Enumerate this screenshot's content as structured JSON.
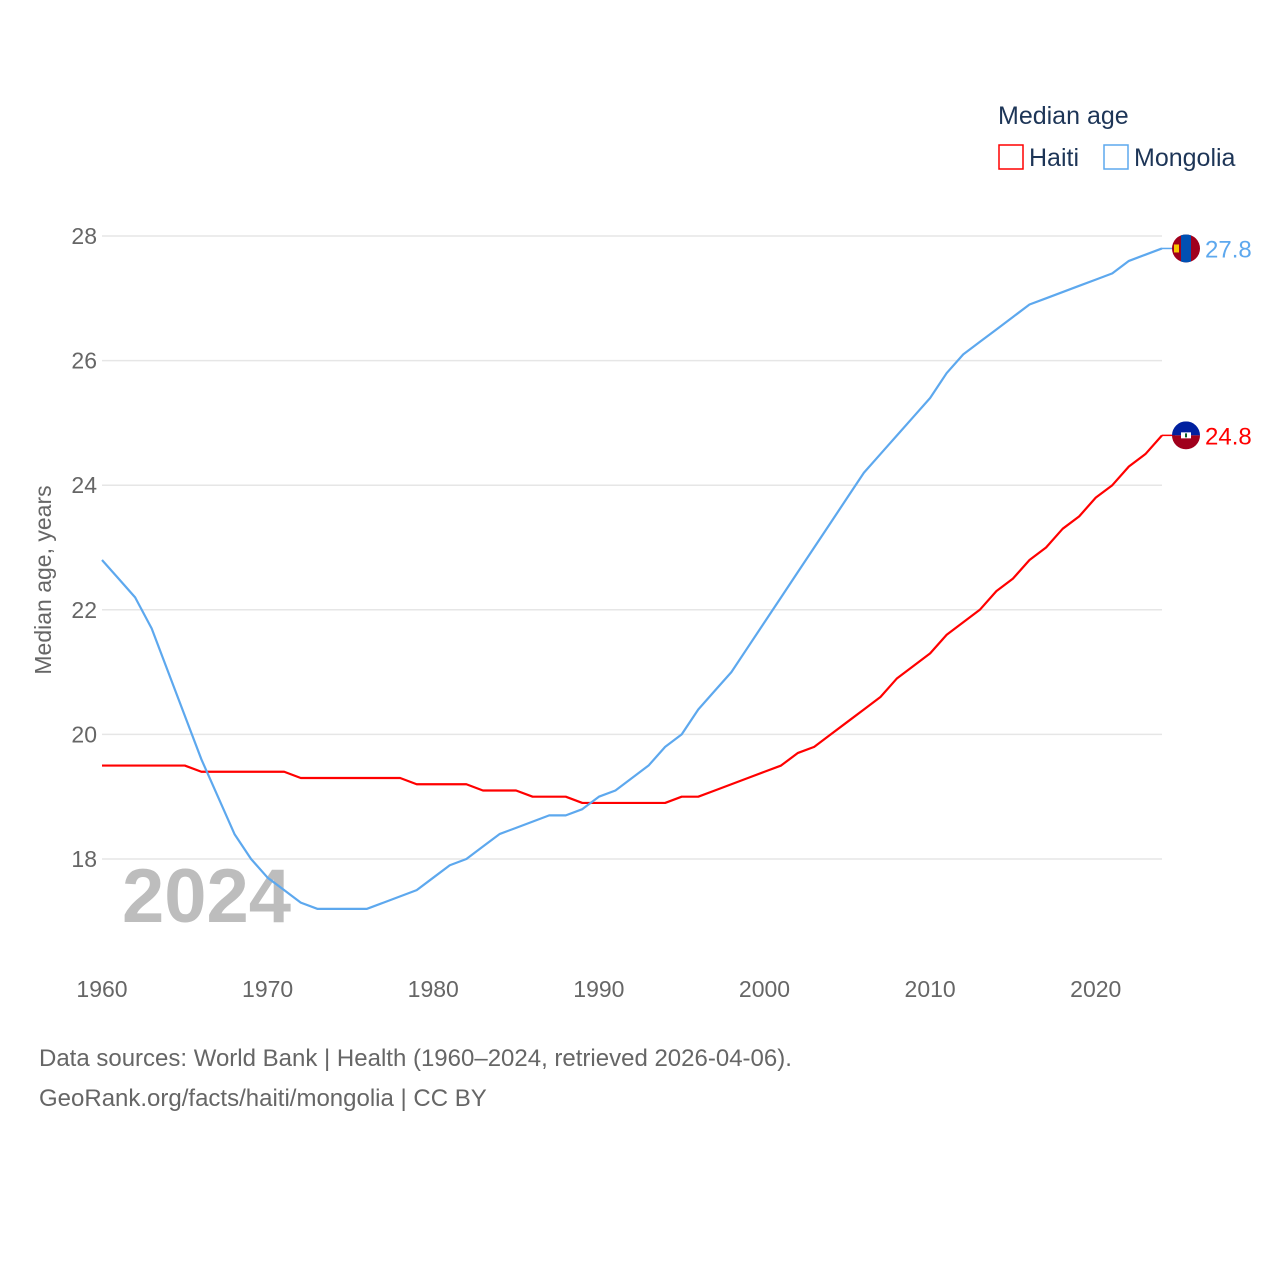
{
  "chart_data": {
    "type": "line",
    "title": "",
    "legend_title": "Median age",
    "legend_placement": "top-right",
    "xlabel": "",
    "ylabel": "Median age, years",
    "xlim": [
      1960,
      2024
    ],
    "ylim": [
      17,
      28
    ],
    "x_ticks": [
      1960,
      1970,
      1980,
      1990,
      2000,
      2010,
      2020
    ],
    "y_ticks": [
      18,
      20,
      22,
      24,
      26,
      28
    ],
    "grid": true,
    "year_watermark": "2024",
    "x": [
      1960,
      1961,
      1962,
      1963,
      1964,
      1965,
      1966,
      1967,
      1968,
      1969,
      1970,
      1971,
      1972,
      1973,
      1974,
      1975,
      1976,
      1977,
      1978,
      1979,
      1980,
      1981,
      1982,
      1983,
      1984,
      1985,
      1986,
      1987,
      1988,
      1989,
      1990,
      1991,
      1992,
      1993,
      1994,
      1995,
      1996,
      1997,
      1998,
      1999,
      2000,
      2001,
      2002,
      2003,
      2004,
      2005,
      2006,
      2007,
      2008,
      2009,
      2010,
      2011,
      2012,
      2013,
      2014,
      2015,
      2016,
      2017,
      2018,
      2019,
      2020,
      2021,
      2022,
      2023,
      2024
    ],
    "series": [
      {
        "name": "Haiti",
        "color": "#ff0000",
        "end_label": "24.8",
        "flag": "haiti-flag",
        "values": [
          19.5,
          19.5,
          19.5,
          19.5,
          19.5,
          19.5,
          19.4,
          19.4,
          19.4,
          19.4,
          19.4,
          19.4,
          19.3,
          19.3,
          19.3,
          19.3,
          19.3,
          19.3,
          19.3,
          19.2,
          19.2,
          19.2,
          19.2,
          19.1,
          19.1,
          19.1,
          19.0,
          19.0,
          19.0,
          18.9,
          18.9,
          18.9,
          18.9,
          18.9,
          18.9,
          19.0,
          19.0,
          19.1,
          19.2,
          19.3,
          19.4,
          19.5,
          19.7,
          19.8,
          20.0,
          20.2,
          20.4,
          20.6,
          20.9,
          21.1,
          21.3,
          21.6,
          21.8,
          22.0,
          22.3,
          22.5,
          22.8,
          23.0,
          23.3,
          23.5,
          23.8,
          24.0,
          24.3,
          24.5,
          24.8
        ]
      },
      {
        "name": "Mongolia",
        "color": "#5da8ee",
        "end_label": "27.8",
        "flag": "mongolia-flag",
        "values": [
          22.8,
          22.5,
          22.2,
          21.7,
          21.0,
          20.3,
          19.6,
          19.0,
          18.4,
          18.0,
          17.7,
          17.5,
          17.3,
          17.2,
          17.2,
          17.2,
          17.2,
          17.3,
          17.4,
          17.5,
          17.7,
          17.9,
          18.0,
          18.2,
          18.4,
          18.5,
          18.6,
          18.7,
          18.7,
          18.8,
          19.0,
          19.1,
          19.3,
          19.5,
          19.8,
          20.0,
          20.4,
          20.7,
          21.0,
          21.4,
          21.8,
          22.2,
          22.6,
          23.0,
          23.4,
          23.8,
          24.2,
          24.5,
          24.8,
          25.1,
          25.4,
          25.8,
          26.1,
          26.3,
          26.5,
          26.7,
          26.9,
          27.0,
          27.1,
          27.2,
          27.3,
          27.4,
          27.6,
          27.7,
          27.8
        ]
      }
    ]
  },
  "footer": {
    "line1": "Data sources: World Bank | Health (1960–2024, retrieved 2026-04-06).",
    "line2": "GeoRank.org/facts/haiti/mongolia | CC BY"
  }
}
